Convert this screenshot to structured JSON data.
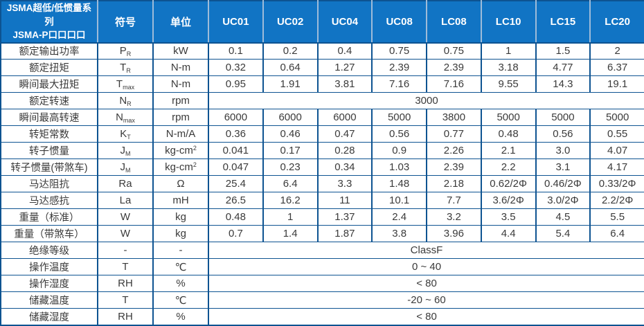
{
  "colors": {
    "header_bg": "#1174c4",
    "border": "#0d5391",
    "header_divider": "#9fbcd9",
    "text": "#3a3a3a"
  },
  "table": {
    "header": {
      "title_line1": "JSMA超低/低惯量系列",
      "title_line2": "JSMA-P口口口口",
      "symbol_col": "符号",
      "unit_col": "单位",
      "models": [
        "UC01",
        "UC02",
        "UC04",
        "UC08",
        "LC08",
        "LC10",
        "LC15",
        "LC20"
      ]
    },
    "rows": [
      {
        "label": "额定输出功率",
        "symbol": "P",
        "symbol_sub": "R",
        "unit": "kW",
        "unit_sup": "",
        "values": [
          "0.1",
          "0.2",
          "0.4",
          "0.75",
          "0.75",
          "1",
          "1.5",
          "2"
        ]
      },
      {
        "label": "额定扭矩",
        "symbol": "T",
        "symbol_sub": "R",
        "unit": "N-m",
        "unit_sup": "",
        "values": [
          "0.32",
          "0.64",
          "1.27",
          "2.39",
          "2.39",
          "3.18",
          "4.77",
          "6.37"
        ]
      },
      {
        "label": "瞬间最大扭矩",
        "symbol": "T",
        "symbol_sub": "max",
        "unit": "N-m",
        "unit_sup": "",
        "values": [
          "0.95",
          "1.91",
          "3.81",
          "7.16",
          "7.16",
          "9.55",
          "14.3",
          "19.1"
        ]
      },
      {
        "label": "额定转速",
        "symbol": "N",
        "symbol_sub": "R",
        "unit": "rpm",
        "unit_sup": "",
        "merged_value": "3000"
      },
      {
        "label": "瞬间最高转速",
        "symbol": "N",
        "symbol_sub": "max",
        "unit": "rpm",
        "unit_sup": "",
        "values": [
          "6000",
          "6000",
          "6000",
          "5000",
          "3800",
          "5000",
          "5000",
          "5000"
        ]
      },
      {
        "label": "转矩常数",
        "symbol": "K",
        "symbol_sub": "T",
        "unit": "N-m/A",
        "unit_sup": "",
        "values": [
          "0.36",
          "0.46",
          "0.47",
          "0.56",
          "0.77",
          "0.48",
          "0.56",
          "0.55"
        ]
      },
      {
        "label": "转子惯量",
        "symbol": "J",
        "symbol_sub": "M",
        "unit": "kg-cm",
        "unit_sup": "2",
        "values": [
          "0.041",
          "0.17",
          "0.28",
          "0.9",
          "2.26",
          "2.1",
          "3.0",
          "4.07"
        ]
      },
      {
        "label": "转子惯量(带煞车)",
        "symbol": "J",
        "symbol_sub": "M",
        "unit": "kg-cm",
        "unit_sup": "2",
        "values": [
          "0.047",
          "0.23",
          "0.34",
          "1.03",
          "2.39",
          "2.2",
          "3.1",
          "4.17"
        ]
      },
      {
        "label": "马达阻抗",
        "symbol": "Ra",
        "symbol_sub": "",
        "unit": "Ω",
        "unit_sup": "",
        "values": [
          "25.4",
          "6.4",
          "3.3",
          "1.48",
          "2.18",
          "0.62/2Φ",
          "0.46/2Φ",
          "0.33/2Φ"
        ]
      },
      {
        "label": "马达感抗",
        "symbol": "La",
        "symbol_sub": "",
        "unit": "mH",
        "unit_sup": "",
        "values": [
          "26.5",
          "16.2",
          "11",
          "10.1",
          "7.7",
          "3.6/2Φ",
          "3.0/2Φ",
          "2.2/2Φ"
        ]
      },
      {
        "label": "重量（标准）",
        "symbol": "W",
        "symbol_sub": "",
        "unit": "kg",
        "unit_sup": "",
        "values": [
          "0.48",
          "1",
          "1.37",
          "2.4",
          "3.2",
          "3.5",
          "4.5",
          "5.5"
        ]
      },
      {
        "label": "重量（带煞车）",
        "symbol": "W",
        "symbol_sub": "",
        "unit": "kg",
        "unit_sup": "",
        "values": [
          "0.7",
          "1.4",
          "1.87",
          "3.8",
          "3.96",
          "4.4",
          "5.4",
          "6.4"
        ]
      },
      {
        "label": "绝缘等级",
        "symbol": "-",
        "symbol_sub": "",
        "unit": "-",
        "unit_sup": "",
        "merged_value": "ClassF"
      },
      {
        "label": "操作温度",
        "symbol": "T",
        "symbol_sub": "",
        "unit": "℃",
        "unit_sup": "",
        "merged_value": "0 ~ 40"
      },
      {
        "label": "操作湿度",
        "symbol": "RH",
        "symbol_sub": "",
        "unit": "%",
        "unit_sup": "",
        "merged_value": "< 80"
      },
      {
        "label": "储藏温度",
        "symbol": "T",
        "symbol_sub": "",
        "unit": "℃",
        "unit_sup": "",
        "merged_value": "-20 ~ 60"
      },
      {
        "label": "储藏湿度",
        "symbol": "RH",
        "symbol_sub": "",
        "unit": "%",
        "unit_sup": "",
        "merged_value": "< 80"
      }
    ]
  }
}
